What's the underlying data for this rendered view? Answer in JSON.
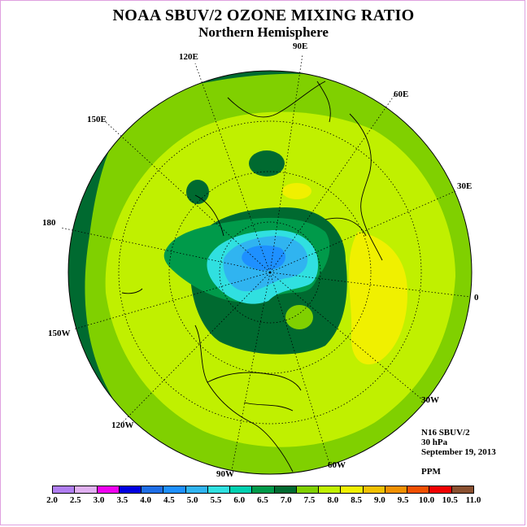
{
  "title": "NOAA SBUV/2 OZONE MIXING RATIO",
  "subtitle": "Northern Hemisphere",
  "longitude_labels": [
    "90E",
    "60E",
    "30E",
    "0",
    "30W",
    "60W",
    "90W",
    "120W",
    "150W",
    "180",
    "150E",
    "120E"
  ],
  "info": {
    "satellite": "N16 SBUV/2",
    "level": "30 hPa",
    "date": "September 19, 2013",
    "units": "PPM"
  },
  "colorbar": {
    "labels": [
      "2.0",
      "2.5",
      "3.0",
      "3.5",
      "4.0",
      "4.5",
      "5.0",
      "5.5",
      "6.0",
      "6.5",
      "7.0",
      "7.5",
      "8.0",
      "8.5",
      "9.0",
      "9.5",
      "10.0",
      "10.5",
      "11.0"
    ],
    "colors": [
      "#b07ef0",
      "#e0b0f0",
      "#f000f0",
      "#0000e0",
      "#1e6ee6",
      "#1e90ff",
      "#30b4f0",
      "#30e0e0",
      "#00d0b0",
      "#009a4a",
      "#006a30",
      "#80d000",
      "#c0f000",
      "#f0f000",
      "#f0c000",
      "#f09000",
      "#f05000",
      "#f00000",
      "#8a5030"
    ]
  },
  "map_fields": {
    "background_level": "7.5-8.0 (#c0f000)",
    "outer_ring_level": "6.5-7.0 (#006a30)",
    "max_region_level": "8.0-8.5 (#f0f000)",
    "polar_min_level": "4.5-5.0 (#1e90ff)"
  }
}
